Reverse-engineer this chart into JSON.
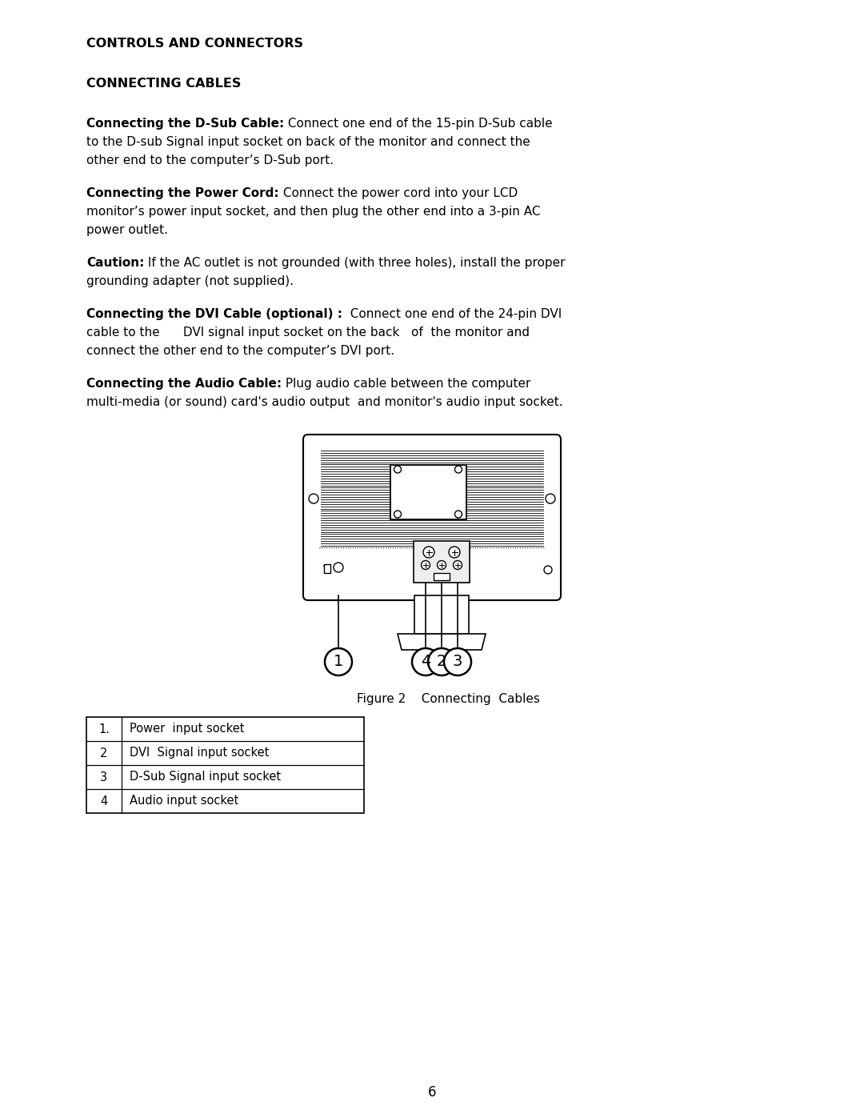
{
  "bg_color": "#ffffff",
  "text_color": "#000000",
  "page_number": "6",
  "heading1": "CONTROLS AND CONNECTORS",
  "heading2": "CONNECTING CABLES",
  "para1_bold": "Connecting the D-Sub Cable:",
  "para1_rest_line1": " Connect one end of the 15-pin D-Sub cable",
  "para1_line2": "to the D-sub Signal input socket on back of the monitor and connect the",
  "para1_line3": "other end to the computer’s D-Sub port.",
  "para2_bold": "Connecting the Power Cord:",
  "para2_rest_line1": " Connect the power cord into your LCD",
  "para2_line2": "monitor’s power input socket, and then plug the other end into a 3-pin AC",
  "para2_line3": "power outlet.",
  "para3_bold": "Caution:",
  "para3_rest_line1": " If the AC outlet is not grounded (with three holes), install the proper",
  "para3_line2": "grounding adapter (not supplied).",
  "para4_bold": "Connecting the DVI Cable (optional) :",
  "para4_rest_line1": "  Connect one end of the 24-pin DVI",
  "para4_line2": "cable to the      DVI signal input socket on the back   of  the monitor and",
  "para4_line3": "connect the other end to the computer’s DVI port.",
  "para5_bold": "Connecting the Audio Cable:",
  "para5_rest_line1": " Plug audio cable between the computer",
  "para5_line2": "multi-media (or sound) card's audio output  and monitor's audio input socket.",
  "figure_caption": "Figure 2    Connecting  Cables",
  "table_rows": [
    [
      "1.",
      "Power  input socket"
    ],
    [
      "2",
      "DVI  Signal input socket"
    ],
    [
      "3",
      "D-Sub Signal input socket"
    ],
    [
      "4",
      "Audio input socket"
    ]
  ]
}
